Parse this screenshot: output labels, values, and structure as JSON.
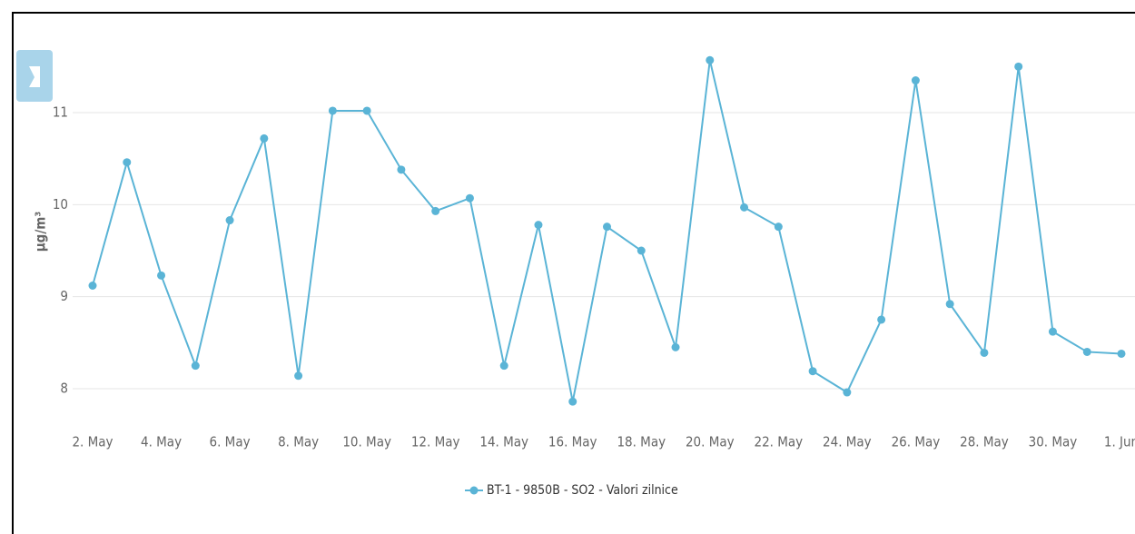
{
  "chart_data": {
    "type": "line",
    "y_label": "µg/m³",
    "categories": [
      "2. May",
      null,
      "4. May",
      null,
      "6. May",
      null,
      "8. May",
      null,
      "10. May",
      null,
      "12. May",
      null,
      "14. May",
      null,
      "16. May",
      null,
      "18. May",
      null,
      "20. May",
      null,
      "22. May",
      null,
      "24. May",
      null,
      "26. May",
      null,
      "28. May",
      null,
      "30. May",
      null,
      "1. Jun"
    ],
    "series": [
      {
        "name": "BT-1 - 9850B - SO2 - Valori zilnice",
        "color": "#5ab4d6",
        "values": [
          9.12,
          10.46,
          9.23,
          8.25,
          9.83,
          10.72,
          8.14,
          11.02,
          11.02,
          10.38,
          9.93,
          10.07,
          8.25,
          9.78,
          7.86,
          9.76,
          9.5,
          8.45,
          11.57,
          9.97,
          9.76,
          8.19,
          7.96,
          8.75,
          11.35,
          8.92,
          8.39,
          11.5,
          8.62,
          8.4,
          8.38
        ]
      }
    ],
    "ylim": [
      7.6,
      12
    ],
    "yticks": [
      8,
      9,
      10,
      11
    ],
    "grid": true
  }
}
